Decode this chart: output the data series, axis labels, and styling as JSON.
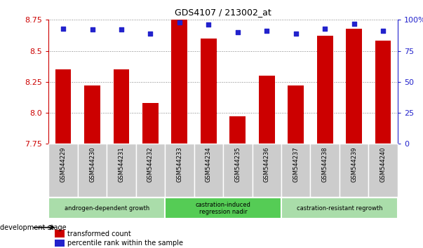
{
  "title": "GDS4107 / 213002_at",
  "samples": [
    "GSM544229",
    "GSM544230",
    "GSM544231",
    "GSM544232",
    "GSM544233",
    "GSM544234",
    "GSM544235",
    "GSM544236",
    "GSM544237",
    "GSM544238",
    "GSM544239",
    "GSM544240"
  ],
  "transformed_counts": [
    8.35,
    8.22,
    8.35,
    8.08,
    8.75,
    8.6,
    7.97,
    8.3,
    8.22,
    8.62,
    8.68,
    8.58
  ],
  "percentile_ranks": [
    93,
    92,
    92,
    89,
    98,
    96,
    90,
    91,
    89,
    93,
    97,
    91
  ],
  "ylim_left": [
    7.75,
    8.75
  ],
  "ylim_right": [
    0,
    100
  ],
  "yticks_left": [
    7.75,
    8.0,
    8.25,
    8.5,
    8.75
  ],
  "yticks_right": [
    0,
    25,
    50,
    75,
    100
  ],
  "bar_color": "#cc0000",
  "dot_color": "#2222cc",
  "group_labels": [
    "androgen-dependent growth",
    "castration-induced\nregression nadir",
    "castration-resistant regrowth"
  ],
  "group_ranges": [
    [
      0,
      4
    ],
    [
      4,
      8
    ],
    [
      8,
      12
    ]
  ],
  "group_bg_colors": [
    "#aaddaa",
    "#55cc55",
    "#aaddaa"
  ],
  "sample_box_color": "#cccccc",
  "tick_color_left": "#cc0000",
  "tick_color_right": "#2222cc",
  "legend_items": [
    "transformed count",
    "percentile rank within the sample"
  ],
  "stage_label": "development stage",
  "bar_width": 0.55
}
